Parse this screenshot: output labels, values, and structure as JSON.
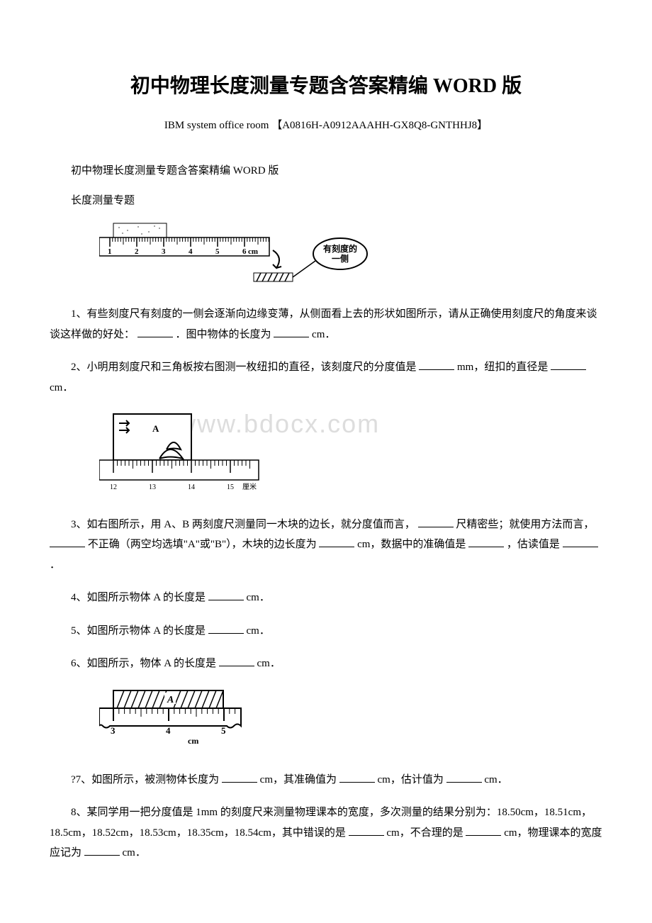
{
  "title": "初中物理长度测量专题含答案精编 WORD 版",
  "subtitle": "IBM system office room 【A0816H-A0912AAAHH-GX8Q8-GNTHHJ8】",
  "heading1": "初中物理长度测量专题含答案精编 WORD 版",
  "heading2": "长度测量专题",
  "watermark": "www.bdocx.com",
  "figure1": {
    "ruler_labels": [
      "1",
      "2",
      "3",
      "4",
      "5",
      "6"
    ],
    "ruler_unit": "cm",
    "callout_line1": "有刻度的",
    "callout_line2": "一侧",
    "stroke_color": "#000000",
    "bg_color": "#ffffff"
  },
  "figure2": {
    "ruler_labels": [
      "12",
      "13",
      "14",
      "15"
    ],
    "ruler_unit": "厘米",
    "letter": "A",
    "stroke_color": "#000000"
  },
  "figure3": {
    "ruler_labels": [
      "3",
      "4",
      "5"
    ],
    "ruler_unit": "cm",
    "object_label": "A",
    "stroke_color": "#000000",
    "hatch_color": "#000000"
  },
  "q1": {
    "prefix": "1、有些刻度尺有刻度的一侧会逐渐向边缘变薄，从侧面看上去的形状如图所示，请从正确使用刻度尺的角度来谈谈这样做的好处：",
    "mid": " ．图中物体的长度为",
    "suffix": "cm．"
  },
  "q2": {
    "prefix": "2、小明用刻度尺和三角板按右图测一枚纽扣的直径，该刻度尺的分度值是",
    "mid": "mm，纽扣的直径是",
    "suffix": "cm．"
  },
  "q3": {
    "prefix": "3、如右图所示，用 A、B 两刻度尺测量同一木块的边长，就分度值而言，",
    "mid1": "尺精密些；就使用方法而言，",
    "mid2": "不正确（两空均选填\"A\"或\"B\"），木块的边长度为",
    "mid3": "cm，数据中的准确值是",
    "mid4": "，估读值是",
    "suffix": "．"
  },
  "q4": {
    "prefix": "4、如图所示物体 A 的长度是",
    "suffix": "cm．"
  },
  "q5": {
    "prefix": "5、如图所示物体 A 的长度是",
    "suffix": "cm．"
  },
  "q6": {
    "prefix": "6、如图所示，物体 A 的长度是",
    "suffix": "cm．"
  },
  "q7": {
    "prefix": "?7、如图所示，被测物体长度为",
    "mid1": "cm，其准确值为",
    "mid2": "cm，估计值为",
    "suffix": "cm．"
  },
  "q8": {
    "prefix": "8、某同学用一把分度值是 1mm 的刻度尺来测量物理课本的宽度，多次测量的结果分别为：18.50cm，18.51cm，18.5cm，18.52cm，18.53cm，18.35cm，18.54cm，其中错误的是",
    "mid1": "cm，不合理的是",
    "mid2": "cm，物理课本的宽度应记为",
    "suffix": "cm．"
  }
}
